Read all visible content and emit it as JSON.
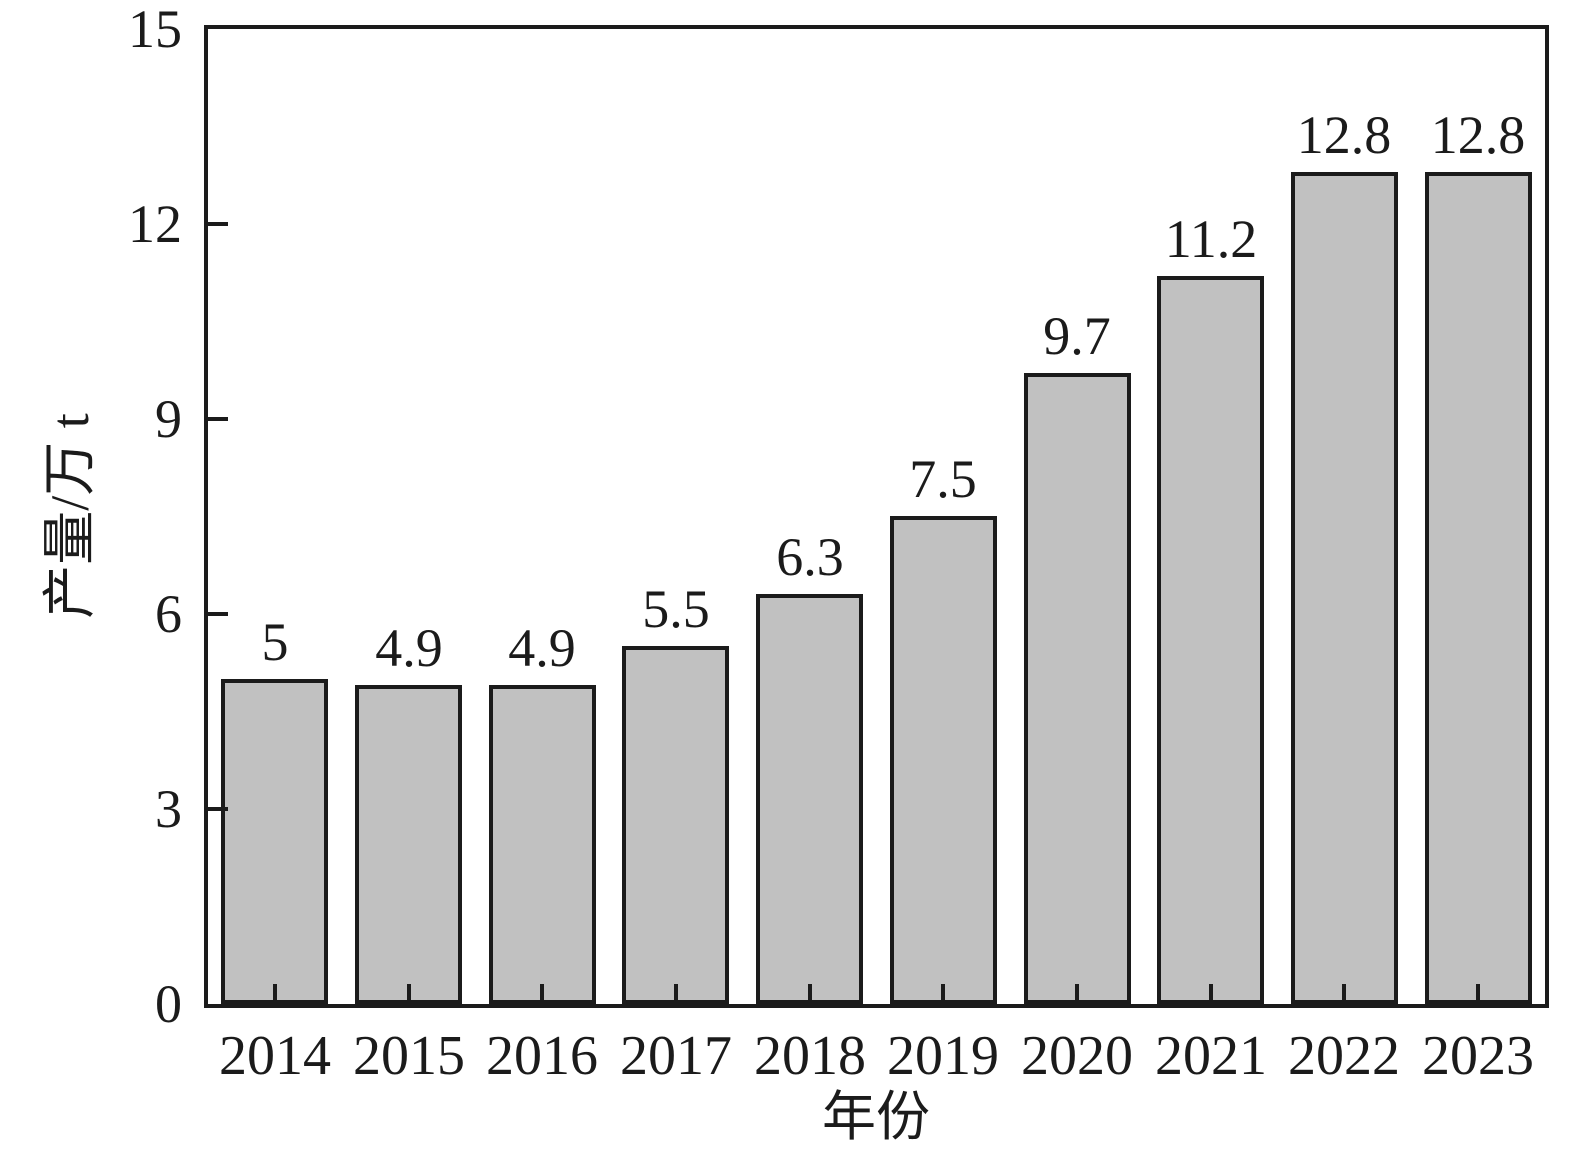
{
  "figure": {
    "background": "#ffffff",
    "text_color": "#1b1b1b"
  },
  "chart_data": {
    "type": "bar",
    "title": "",
    "xlabel": "年份",
    "ylabel": "产量/万 t",
    "categories": [
      "2014",
      "2015",
      "2016",
      "2017",
      "2018",
      "2019",
      "2020",
      "2021",
      "2022",
      "2023"
    ],
    "values": [
      5,
      4.9,
      4.9,
      5.5,
      6.3,
      7.5,
      9.7,
      11.2,
      12.8,
      12.8
    ],
    "value_labels": [
      "5",
      "4.9",
      "4.9",
      "5.5",
      "6.3",
      "7.5",
      "9.7",
      "11.2",
      "12.8",
      "12.8"
    ],
    "ylim": [
      0,
      15
    ],
    "yticks": [
      0,
      3,
      6,
      9,
      12,
      15
    ],
    "grid": false,
    "legend": null,
    "bar_fill_color": "#c1c1c1",
    "bar_edge_color": "#1b1b1b",
    "axis_color": "#1b1b1b"
  }
}
